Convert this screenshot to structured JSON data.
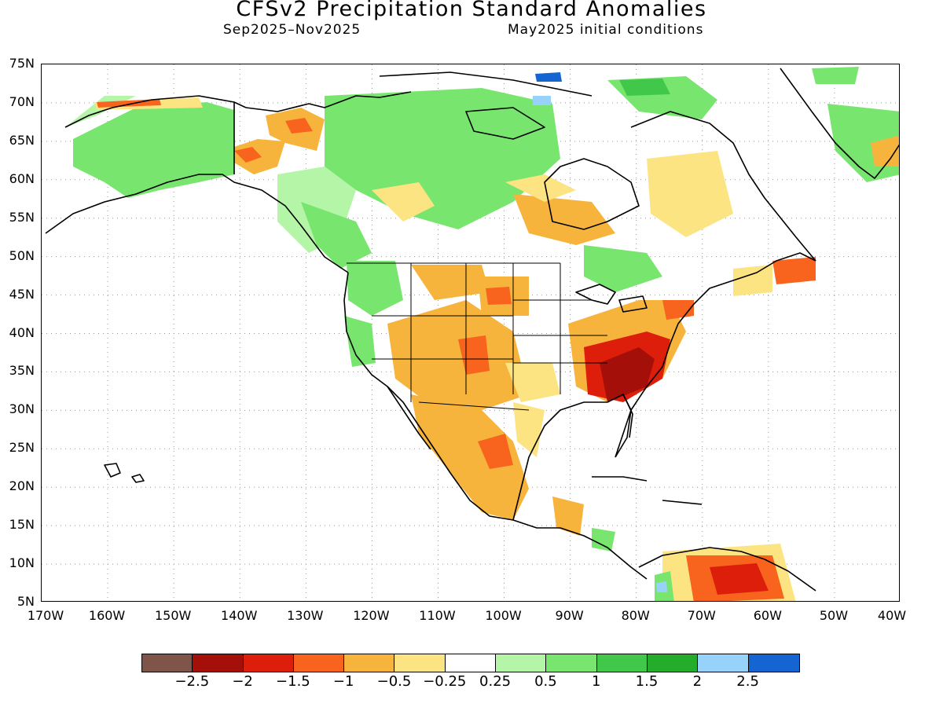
{
  "title": "CFSv2 Precipitation Standard Anomalies",
  "period": "Sep2025–Nov2025",
  "init": "May2025 initial conditions",
  "lat_labels": [
    "75N",
    "70N",
    "65N",
    "60N",
    "55N",
    "50N",
    "45N",
    "40N",
    "35N",
    "30N",
    "25N",
    "20N",
    "15N",
    "10N",
    "5N"
  ],
  "lon_labels": [
    "170W",
    "160W",
    "150W",
    "140W",
    "130W",
    "120W",
    "110W",
    "100W",
    "90W",
    "80W",
    "70W",
    "60W",
    "50W",
    "40W"
  ],
  "colorbar": {
    "colors": [
      "#7e5548",
      "#a50f0a",
      "#dc1e0a",
      "#f8641e",
      "#f7b43c",
      "#fde482",
      "#ffffff",
      "#b4f5a8",
      "#78e66e",
      "#41c84b",
      "#23ad2a",
      "#96d2fa",
      "#1464d2"
    ],
    "labels": [
      "−2.5",
      "−2",
      "−1.5",
      "−1",
      "−0.5",
      "−0.25",
      "0.25",
      "0.5",
      "1",
      "1.5",
      "2",
      "2.5"
    ]
  },
  "map": {
    "extent": {
      "lon": [
        -170,
        -40
      ],
      "lat": [
        5,
        75
      ]
    },
    "anomaly_regions": [
      {
        "name": "southeast-us-dry",
        "category": "-2",
        "color": "#a50f0a"
      },
      {
        "name": "southeast-us-surround",
        "category": "-1.5",
        "color": "#dc1e0a"
      },
      {
        "name": "venezuela-dry",
        "category": "-1.5",
        "color": "#dc1e0a"
      },
      {
        "name": "alaska-wet",
        "category": "0.5",
        "color": "#78e66e"
      },
      {
        "name": "canada-central-wet",
        "category": "0.5",
        "color": "#78e66e"
      },
      {
        "name": "greenland-wet",
        "category": "0.5",
        "color": "#78e66e"
      },
      {
        "name": "southwest-us-dry",
        "category": "-0.5",
        "color": "#f7b43c"
      },
      {
        "name": "mexico-dry",
        "category": "-0.5",
        "color": "#f7b43c"
      },
      {
        "name": "arctic-islands-very-wet",
        "category": "2.5",
        "color": "#1464d2"
      }
    ]
  }
}
